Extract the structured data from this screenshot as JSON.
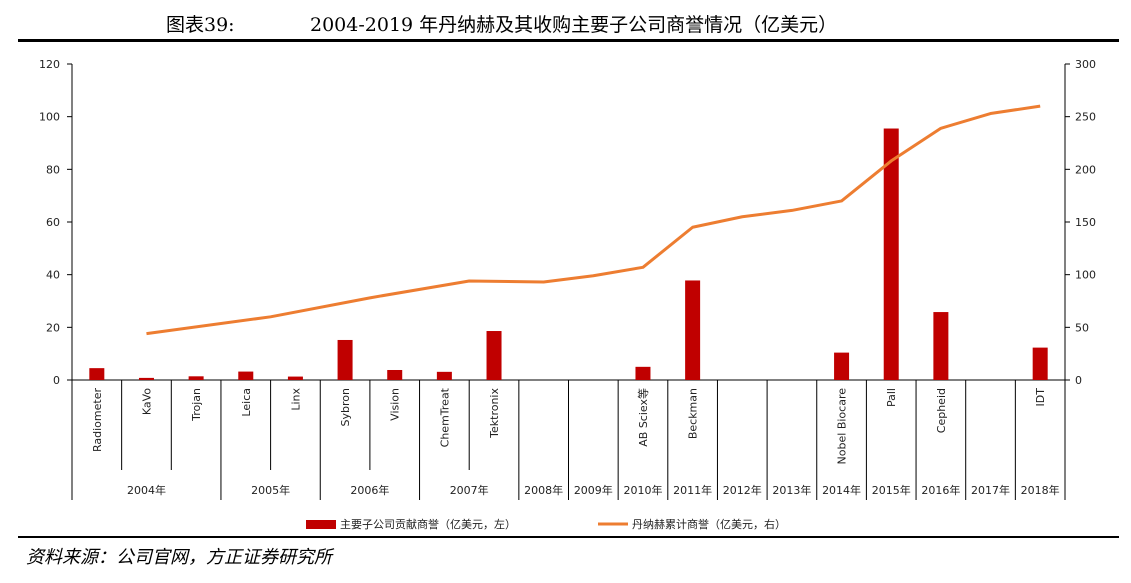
{
  "figure": {
    "label": "图表39:",
    "title": "2004-2019 年丹纳赫及其收购主要子公司商誉情况（亿美元）",
    "source": "资料来源：公司官网，方正证券研究所"
  },
  "colors": {
    "bar": "#c00000",
    "line": "#ed7d31",
    "axis": "#000000"
  },
  "chart_data": {
    "type": "bar+line",
    "categories": [
      "Radiometer",
      "KaVo",
      "Trojan",
      "Leica",
      "Linx",
      "Sybron",
      "Vision",
      "ChemTreat",
      "Tektronix",
      "",
      "",
      "AB Sciex等",
      "Beckman",
      "",
      "",
      "Nobel Biocare",
      "Pall",
      "Cepheid",
      "",
      "IDT"
    ],
    "year_groups": [
      {
        "label": "2004年",
        "span": 3
      },
      {
        "label": "2005年",
        "span": 2
      },
      {
        "label": "2006年",
        "span": 2
      },
      {
        "label": "2007年",
        "span": 2
      },
      {
        "label": "2008年",
        "span": 1
      },
      {
        "label": "2009年",
        "span": 1
      },
      {
        "label": "2010年",
        "span": 1
      },
      {
        "label": "2011年",
        "span": 1
      },
      {
        "label": "2012年",
        "span": 1
      },
      {
        "label": "2013年",
        "span": 1
      },
      {
        "label": "2014年",
        "span": 1
      },
      {
        "label": "2015年",
        "span": 1
      },
      {
        "label": "2016年",
        "span": 1
      },
      {
        "label": "2017年",
        "span": 1
      },
      {
        "label": "2018年",
        "span": 1
      }
    ],
    "series": [
      {
        "name": "主要子公司贡献商誉（亿美元，左）",
        "type": "bar",
        "axis": "left",
        "values": [
          4.5,
          0.8,
          1.4,
          3.2,
          1.3,
          15.2,
          3.8,
          3.1,
          18.6,
          0,
          0,
          5,
          37.8,
          0,
          0,
          10.4,
          95.5,
          25.8,
          0,
          12.3
        ]
      },
      {
        "name": "丹纳赫累计商誉（亿美元，右）",
        "type": "line",
        "axis": "right",
        "values": [
          null,
          null,
          null,
          null,
          44,
          null,
          null,
          null,
          94,
          93,
          99,
          107,
          145,
          155,
          161,
          170,
          208,
          239,
          253,
          260
        ],
        "point_mode": "year_centers",
        "year_values": [
          44,
          60,
          78,
          94,
          93,
          99,
          107,
          145,
          155,
          161,
          170,
          208,
          239,
          253,
          260
        ]
      }
    ],
    "y_left": {
      "min": 0,
      "max": 120,
      "ticks": [
        0,
        20,
        40,
        60,
        80,
        100,
        120
      ]
    },
    "y_right": {
      "min": 0,
      "max": 300,
      "ticks": [
        0,
        50,
        100,
        150,
        200,
        250,
        300
      ]
    },
    "legend_position": "bottom",
    "grid": false
  }
}
